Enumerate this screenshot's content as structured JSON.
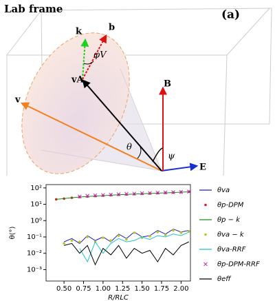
{
  "diagram": {
    "title": "Lab frame",
    "panel": "(a)",
    "labels": [
      "k",
      "b",
      "φV",
      "vA",
      "B",
      "v",
      "θ",
      "ψ",
      "E"
    ]
  },
  "chart_data": {
    "type": "line",
    "ylabel": "θ(°)",
    "xlabel": "R/RLC",
    "log_y": true,
    "x": [
      0.4,
      0.5,
      0.6,
      0.7,
      0.8,
      0.9,
      1.0,
      1.1,
      1.2,
      1.3,
      1.4,
      1.5,
      1.6,
      1.7,
      1.8,
      1.9,
      2.0,
      2.1
    ],
    "xlim": [
      0.27,
      2.12
    ],
    "ylim": [
      0.0002,
      160
    ],
    "xticks": [
      {
        "value": 0.5,
        "label": "0.50"
      },
      {
        "value": 0.75,
        "label": "0.75"
      },
      {
        "value": 1.0,
        "label": "1.00"
      },
      {
        "value": 1.25,
        "label": "1.25"
      },
      {
        "value": 1.5,
        "label": "1.50"
      },
      {
        "value": 1.75,
        "label": "1.75"
      },
      {
        "value": 2.0,
        "label": "2.00"
      }
    ],
    "yticks": [
      {
        "value": 0.001,
        "label": "10⁻³"
      },
      {
        "value": 0.01,
        "label": "10⁻²"
      },
      {
        "value": 0.1,
        "label": "10⁻¹"
      },
      {
        "value": 1,
        "label": "10⁰"
      },
      {
        "value": 10,
        "label": "10¹"
      },
      {
        "value": 100,
        "label": "10²"
      }
    ],
    "series": [
      {
        "name": "θva",
        "color": "#1f1fbf",
        "marker": "line",
        "values": [
          null,
          0.05,
          0.08,
          0.04,
          0.12,
          0.06,
          0.1,
          0.05,
          0.15,
          0.08,
          0.2,
          0.1,
          0.12,
          0.25,
          0.15,
          0.3,
          0.2,
          0.25
        ]
      },
      {
        "name": "θp-DPM",
        "color": "#d62020",
        "marker": "dot",
        "values": [
          20,
          22,
          25,
          28,
          30,
          32,
          34,
          36,
          38,
          40,
          42,
          44,
          46,
          48,
          50,
          52,
          55,
          58
        ]
      },
      {
        "name": "θp − k",
        "color": "#1a8a1a",
        "marker": "line",
        "values": [
          20,
          22.5,
          25,
          28,
          30,
          32,
          34,
          36,
          38,
          40,
          42,
          44,
          46,
          48,
          50,
          52,
          55,
          58
        ]
      },
      {
        "name": "θva − k",
        "color": "#b8c820",
        "marker": "dot",
        "values": [
          null,
          0.04,
          0.06,
          0.05,
          0.1,
          0.05,
          0.09,
          0.06,
          0.12,
          0.07,
          0.18,
          0.09,
          0.11,
          0.2,
          0.13,
          0.25,
          0.18,
          0.22
        ]
      },
      {
        "name": "θva-RRF",
        "color": "#20c0d0",
        "marker": "line",
        "values": [
          null,
          null,
          null,
          0.02,
          0.003,
          0.05,
          0.01,
          0.04,
          0.08,
          0.05,
          0.06,
          0.1,
          0.07,
          0.12,
          0.1,
          0.15,
          0.12,
          0.2
        ]
      },
      {
        "name": "θp-DPM-RRF",
        "color": "#c030c0",
        "marker": "x",
        "values": [
          null,
          null,
          null,
          30,
          33,
          35,
          37,
          39,
          41,
          43,
          45,
          47,
          49,
          51,
          53,
          55,
          57,
          60
        ]
      },
      {
        "name": "θeff",
        "color": "#000000",
        "marker": "line",
        "values": [
          null,
          0.03,
          0.04,
          0.01,
          0.03,
          0.002,
          0.02,
          0.008,
          0.03,
          0.005,
          0.02,
          0.01,
          0.015,
          0.003,
          0.02,
          0.008,
          0.03,
          0.05
        ]
      }
    ]
  }
}
